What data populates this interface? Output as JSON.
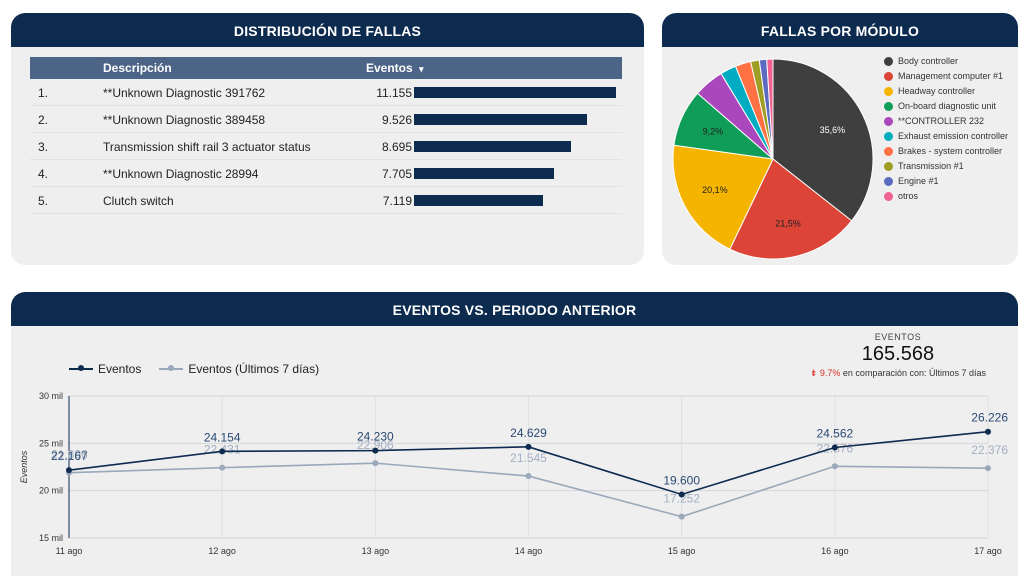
{
  "distribucion": {
    "title": "DISTRIBUCIÓN DE FALLAS",
    "headers": {
      "desc": "Descripción",
      "eventos": "Eventos",
      "sort_icon": "▾"
    },
    "rows": [
      {
        "num": "1.",
        "desc": "**Unknown Diagnostic 391762",
        "value": "11.155",
        "v": 11155
      },
      {
        "num": "2.",
        "desc": "**Unknown Diagnostic 389458",
        "value": "9.526",
        "v": 9526
      },
      {
        "num": "3.",
        "desc": "Transmission shift rail 3 actuator status",
        "value": "8.695",
        "v": 8695
      },
      {
        "num": "4.",
        "desc": "**Unknown Diagnostic 28994",
        "value": "7.705",
        "v": 7705
      },
      {
        "num": "5.",
        "desc": "Clutch switch",
        "value": "7.119",
        "v": 7119
      }
    ]
  },
  "modulo": {
    "title": "FALLAS POR MÓDULO",
    "slices": [
      {
        "label": "Body controller",
        "value": 35.6,
        "text": "35,6%",
        "color": "#3f3f3f"
      },
      {
        "label": "Management computer #1",
        "value": 21.5,
        "text": "21,5%",
        "color": "#db4437"
      },
      {
        "label": "Headway controller",
        "value": 20.1,
        "text": "20,1%",
        "color": "#f4b400"
      },
      {
        "label": "On-board diagnostic unit",
        "value": 9.2,
        "text": "9,2%",
        "color": "#0f9d58"
      },
      {
        "label": "**CONTROLLER 232",
        "value": 4.9,
        "text": "",
        "color": "#ab47bc"
      },
      {
        "label": "Exhaust emission controller",
        "value": 2.6,
        "text": "",
        "color": "#00acc1"
      },
      {
        "label": "Brakes - system controller",
        "value": 2.5,
        "text": "",
        "color": "#ff7043"
      },
      {
        "label": "Transmission #1",
        "value": 1.4,
        "text": "",
        "color": "#9e9d24"
      },
      {
        "label": "Engine #1",
        "value": 1.2,
        "text": "",
        "color": "#5c6bc0"
      },
      {
        "label": "otros",
        "value": 1.0,
        "text": "",
        "color": "#f06292"
      }
    ]
  },
  "eventos": {
    "title": "EVENTOS VS. PERIODO ANTERIOR",
    "legend": {
      "current": "Eventos",
      "previous": "Eventos (Últimos 7 días)"
    },
    "kpi": {
      "label": "EVENTOS",
      "value": "165.568",
      "arrow": "⇟",
      "pct": "9.7%",
      "comparison": " en comparación con: Últimos 7 días"
    }
  },
  "chart_data": {
    "type": "line",
    "x": [
      "11 ago",
      "12 ago",
      "13 ago",
      "14 ago",
      "15 ago",
      "16 ago",
      "17 ago"
    ],
    "series": [
      {
        "name": "Eventos",
        "values": [
          22167,
          24154,
          24230,
          24629,
          19600,
          24562,
          26226
        ],
        "labels": [
          "22.167",
          "24.154",
          "24.230",
          "24.629",
          "19.600",
          "24.562",
          "26.226"
        ],
        "color": "#0d2a4f"
      },
      {
        "name": "Eventos (Últimos 7 días)",
        "values": [
          21896,
          22431,
          22906,
          21545,
          17252,
          22576,
          22376
        ],
        "labels": [
          "21.896",
          "22.431",
          "22.906",
          "21.545",
          "17.252",
          "22.576",
          "22.376"
        ],
        "color": "#9aa8bb"
      }
    ],
    "ylabel": "Eventos",
    "ylim": [
      15000,
      30000
    ],
    "yticks": [
      15000,
      20000,
      25000,
      30000
    ],
    "ytick_labels": [
      "15 mil",
      "20 mil",
      "25 mil",
      "30 mil"
    ],
    "grid": true
  }
}
